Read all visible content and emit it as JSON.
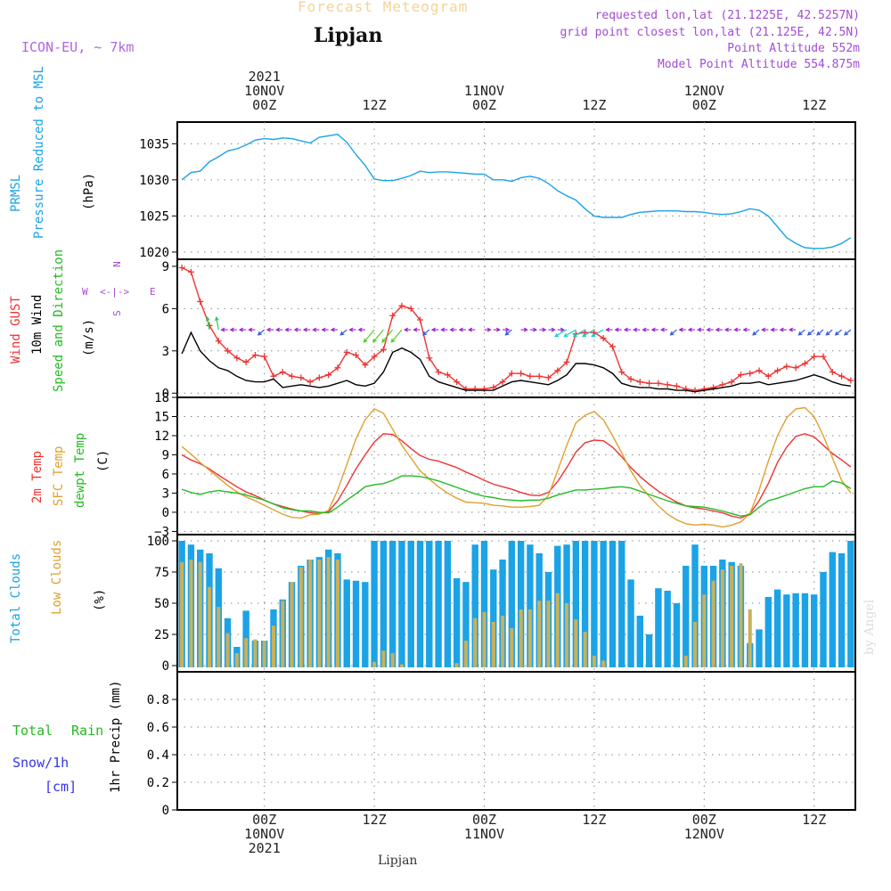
{
  "header": {
    "title": "Forecast Meteogram",
    "location": "Lipjan",
    "model": "ICON-EU, ~ 7km",
    "info": [
      "requested lon,lat (21.1225E, 42.5257N)",
      "grid point closest lon,lat (21.125E, 42.5N)",
      "Point Altitude 552m",
      "Model Point Altitude 554.875m"
    ],
    "footer_location": "Lipjan",
    "watermark": "by Angel"
  },
  "time_axis": {
    "top_labels": [
      {
        "h": 0,
        "lines": [
          "2021",
          "10NOV",
          "00Z"
        ]
      },
      {
        "h": 12,
        "lines": [
          "12Z"
        ]
      },
      {
        "h": 24,
        "lines": [
          "11NOV",
          "00Z"
        ]
      },
      {
        "h": 36,
        "lines": [
          "12Z"
        ]
      },
      {
        "h": 48,
        "lines": [
          "12NOV",
          "00Z"
        ]
      },
      {
        "h": 60,
        "lines": [
          "12Z"
        ]
      }
    ],
    "bottom_labels": [
      {
        "h": 0,
        "lines": [
          "00Z",
          "10NOV",
          "2021"
        ]
      },
      {
        "h": 12,
        "lines": [
          "12Z"
        ]
      },
      {
        "h": 24,
        "lines": [
          "00Z",
          "11NOV"
        ]
      },
      {
        "h": 36,
        "lines": [
          "12Z"
        ]
      },
      {
        "h": 48,
        "lines": [
          "00Z",
          "12NOV"
        ]
      },
      {
        "h": 60,
        "lines": [
          "12Z"
        ]
      }
    ]
  },
  "panel_labels": {
    "pressure": [
      {
        "text": "PRMSL",
        "color": "#1ba3e6"
      },
      {
        "text": "Pressure Reduced to MSL",
        "color": "#1ba3e6"
      },
      {
        "text": "(hPa)",
        "color": "#000000"
      }
    ],
    "wind": [
      {
        "text": "Wind GUST",
        "color": "#ee3333"
      },
      {
        "text": "10m Wind",
        "color": "#000000"
      },
      {
        "text": "Speed and Direction",
        "color": "#22bb22"
      },
      {
        "text": "(m/s)",
        "color": "#000000"
      }
    ],
    "wind_compass": {
      "n": "N",
      "s": "S",
      "w": "W",
      "e": "E",
      "arrows": "<-|->",
      "color": "#a44bd1"
    },
    "temp": [
      {
        "text": "2m Temp",
        "color": "#ee3333"
      },
      {
        "text": "SFC Temp",
        "color": "#e0a030"
      },
      {
        "text": "dewpt Temp",
        "color": "#22bb22"
      },
      {
        "text": "(C)",
        "color": "#000000"
      }
    ],
    "clouds": [
      {
        "text": "Total Clouds",
        "color": "#1ba3e6"
      },
      {
        "text": "Low Clouds",
        "color": "#e0a030"
      },
      {
        "text": "(%)",
        "color": "#000000"
      }
    ],
    "precip_left": [
      {
        "text": "Total",
        "color": "#22bb22"
      },
      {
        "text": "Rain",
        "color": "#22bb22"
      },
      {
        "text": "Snow/1h",
        "color": "#3333ee"
      },
      {
        "text": "[cm]",
        "color": "#3333ee"
      }
    ],
    "precip_axis": {
      "text": "1hr Precip (mm)",
      "color": "#000000"
    }
  },
  "chart_data": [
    {
      "type": "line",
      "name": "pressure",
      "ylim": [
        1019,
        1038
      ],
      "yticks": [
        1020,
        1025,
        1030,
        1035
      ],
      "x_hours": [
        -9,
        -8,
        -7,
        -6,
        -5,
        -4,
        -3,
        -2,
        -1,
        0,
        1,
        2,
        3,
        4,
        5,
        6,
        7,
        8,
        9,
        10,
        11,
        12,
        13,
        14,
        15,
        16,
        17,
        18,
        19,
        20,
        21,
        22,
        23,
        24,
        25,
        26,
        27,
        28,
        29,
        30,
        31,
        32,
        33,
        34,
        35,
        36,
        37,
        38,
        39,
        40,
        41,
        42,
        43,
        44,
        45,
        46,
        47,
        48,
        49,
        50,
        51,
        52,
        53,
        54,
        55,
        56,
        57,
        58,
        59,
        60,
        61,
        62,
        63,
        64
      ],
      "series": [
        {
          "values": [
            1030,
            1031,
            1031.2,
            1032.5,
            1033.2,
            1034,
            1034.3,
            1034.8,
            1035.5,
            1035.7,
            1035.6,
            1035.8,
            1035.7,
            1035.4,
            1035.1,
            1035.9,
            1036.1,
            1036.3,
            1035.2,
            1033.5,
            1032,
            1030.1,
            1029.9,
            1029.9,
            1030.2,
            1030.6,
            1031.2,
            1031,
            1031.1,
            1031.1,
            1031,
            1030.9,
            1030.8,
            1030.8,
            1030,
            1030,
            1029.8,
            1030.3,
            1030.5,
            1030.2,
            1029.5,
            1028.5,
            1027.8,
            1027.2,
            1026,
            1025,
            1024.8,
            1024.8,
            1024.8,
            1025.2,
            1025.5,
            1025.6,
            1025.7,
            1025.7,
            1025.7,
            1025.6,
            1025.6,
            1025.5,
            1025.3,
            1025.2,
            1025.3,
            1025.6,
            1026,
            1025.8,
            1025,
            1023.5,
            1022,
            1021.2,
            1020.6,
            1020.5,
            1020.5,
            1020.7,
            1021.2,
            1022
          ]
        }
      ],
      "color": "#1ba3e6"
    },
    {
      "type": "line",
      "name": "wind",
      "ylim": [
        -0.3,
        9.5
      ],
      "yticks": [
        0,
        3,
        6,
        9
      ],
      "x_hours": [
        -9,
        -8,
        -7,
        -6,
        -5,
        -4,
        -3,
        -2,
        -1,
        0,
        1,
        2,
        3,
        4,
        5,
        6,
        7,
        8,
        9,
        10,
        11,
        12,
        13,
        14,
        15,
        16,
        17,
        18,
        19,
        20,
        21,
        22,
        23,
        24,
        25,
        26,
        27,
        28,
        29,
        30,
        31,
        32,
        33,
        34,
        35,
        36,
        37,
        38,
        39,
        40,
        41,
        42,
        43,
        44,
        45,
        46,
        47,
        48,
        49,
        50,
        51,
        52,
        53,
        54,
        55,
        56,
        57,
        58,
        59,
        60,
        61,
        62,
        63,
        64
      ],
      "series": [
        {
          "values": [
            8.9,
            8.6,
            6.5,
            4.8,
            3.7,
            3.0,
            2.5,
            2.2,
            2.7,
            2.6,
            1.2,
            1.5,
            1.2,
            1.1,
            0.8,
            1.1,
            1.3,
            1.8,
            2.9,
            2.7,
            2.0,
            2.6,
            3.1,
            5.5,
            6.2,
            6.0,
            5.2,
            2.5,
            1.5,
            1.3,
            0.8,
            0.3,
            0.3,
            0.3,
            0.4,
            0.8,
            1.4,
            1.4,
            1.2,
            1.2,
            1.1,
            1.6,
            2.2,
            4.2,
            4.3,
            4.3,
            3.9,
            3.3,
            1.5,
            1.0,
            0.8,
            0.7,
            0.7,
            0.6,
            0.5,
            0.3,
            0.2,
            0.3,
            0.4,
            0.6,
            0.8,
            1.3,
            1.4,
            1.6,
            1.2,
            1.6,
            1.9,
            1.8,
            2.1,
            2.6,
            2.6,
            1.5,
            1.2,
            0.9
          ]
        },
        {
          "values": [
            2.8,
            4.3,
            3.0,
            2.3,
            1.8,
            1.6,
            1.2,
            0.9,
            0.8,
            0.8,
            1.0,
            0.4,
            0.5,
            0.6,
            0.5,
            0.4,
            0.5,
            0.7,
            0.9,
            0.6,
            0.5,
            0.7,
            1.5,
            2.9,
            3.2,
            2.9,
            2.4,
            1.2,
            0.8,
            0.6,
            0.4,
            0.2,
            0.2,
            0.2,
            0.2,
            0.5,
            0.8,
            0.9,
            0.8,
            0.7,
            0.6,
            0.9,
            1.3,
            2.1,
            2.1,
            2.0,
            1.8,
            1.4,
            0.7,
            0.5,
            0.4,
            0.4,
            0.3,
            0.3,
            0.2,
            0.2,
            0.1,
            0.2,
            0.3,
            0.4,
            0.5,
            0.7,
            0.7,
            0.8,
            0.6,
            0.7,
            0.8,
            0.9,
            1.1,
            1.3,
            1.1,
            0.8,
            0.6,
            0.5
          ]
        }
      ],
      "colors": [
        "#ee3333",
        "#000000"
      ]
    },
    {
      "type": "line",
      "name": "temperature",
      "ylim": [
        -3.5,
        18
      ],
      "yticks": [
        -3,
        0,
        3,
        6,
        9,
        12,
        15,
        18
      ],
      "x_hours": [
        -9,
        -8,
        -7,
        -6,
        -5,
        -4,
        -3,
        -2,
        -1,
        0,
        1,
        2,
        3,
        4,
        5,
        6,
        7,
        8,
        9,
        10,
        11,
        12,
        13,
        14,
        15,
        16,
        17,
        18,
        19,
        20,
        21,
        22,
        23,
        24,
        25,
        26,
        27,
        28,
        29,
        30,
        31,
        32,
        33,
        34,
        35,
        36,
        37,
        38,
        39,
        40,
        41,
        42,
        43,
        44,
        45,
        46,
        47,
        48,
        49,
        50,
        51,
        52,
        53,
        54,
        55,
        56,
        57,
        58,
        59,
        60,
        61,
        62,
        63,
        64
      ],
      "series": [
        {
          "values": [
            9,
            8.2,
            7.6,
            6.8,
            5.8,
            4.9,
            4.0,
            3.2,
            2.6,
            1.9,
            1.3,
            0.9,
            0.5,
            0.2,
            -0.1,
            -0.2,
            0.1,
            1.8,
            4.2,
            6.8,
            9.0,
            11.0,
            12.3,
            12.2,
            11.2,
            10.0,
            8.9,
            8.3,
            8.0,
            7.5,
            7.0,
            6.3,
            5.7,
            5.0,
            4.4,
            4.0,
            3.6,
            3.1,
            2.7,
            2.6,
            3.1,
            4.8,
            7.0,
            9.4,
            10.9,
            11.3,
            11.2,
            10.2,
            8.7,
            7.0,
            5.6,
            4.4,
            3.3,
            2.4,
            1.6,
            1.0,
            0.7,
            0.5,
            0.2,
            -0.1,
            -0.6,
            -0.9,
            -0.2,
            1.8,
            4.5,
            7.8,
            10.2,
            11.9,
            12.3,
            11.8,
            10.5,
            9.2,
            8.2,
            7.1
          ]
        },
        {
          "values": [
            10.3,
            9.1,
            7.8,
            6.6,
            5.4,
            4.2,
            3.2,
            2.4,
            1.8,
            1.1,
            0.4,
            -0.3,
            -0.8,
            -0.9,
            -0.4,
            -0.3,
            0.3,
            3.5,
            7.5,
            11.5,
            14.5,
            16.2,
            15.5,
            13.0,
            10.5,
            8.5,
            6.5,
            5.2,
            4.0,
            3.0,
            2.2,
            1.6,
            1.5,
            1.4,
            1.1,
            1.0,
            0.8,
            0.8,
            0.9,
            1.1,
            2.6,
            6.5,
            10.5,
            14.0,
            15.2,
            15.8,
            14.5,
            12.0,
            9.3,
            6.5,
            4.2,
            2.5,
            1.0,
            -0.3,
            -1.2,
            -1.8,
            -2.0,
            -1.9,
            -2.0,
            -2.3,
            -2.0,
            -1.5,
            -0.2,
            3.5,
            8.0,
            12.0,
            14.8,
            16.2,
            16.4,
            15.0,
            12.0,
            8.5,
            5.0,
            3.0
          ]
        },
        {
          "values": [
            3.6,
            3.1,
            2.8,
            3.2,
            3.4,
            3.2,
            3.0,
            2.7,
            2.3,
            1.9,
            1.3,
            0.7,
            0.4,
            0.2,
            0.2,
            0.0,
            -0.1,
            0.8,
            1.9,
            2.9,
            4.0,
            4.3,
            4.5,
            5.0,
            5.7,
            5.7,
            5.6,
            5.3,
            4.9,
            4.4,
            3.9,
            3.4,
            2.9,
            2.5,
            2.3,
            2.0,
            1.9,
            1.8,
            1.9,
            1.9,
            2.2,
            2.7,
            3.1,
            3.5,
            3.5,
            3.6,
            3.7,
            3.9,
            4.0,
            3.8,
            3.3,
            2.8,
            2.3,
            1.8,
            1.4,
            1.0,
            0.9,
            0.8,
            0.5,
            0.2,
            -0.2,
            -0.6,
            -0.4,
            0.8,
            1.8,
            2.2,
            2.7,
            3.2,
            3.7,
            4.0,
            4.0,
            4.9,
            4.6,
            3.7
          ]
        }
      ],
      "colors": [
        "#ee3333",
        "#e0a030",
        "#22bb22"
      ]
    },
    {
      "type": "bar",
      "name": "clouds",
      "ylim": [
        -5,
        105
      ],
      "yticks": [
        0,
        25,
        50,
        75,
        100
      ],
      "x_hours": [
        -9,
        -8,
        -7,
        -6,
        -5,
        -4,
        -3,
        -2,
        -1,
        0,
        1,
        2,
        3,
        4,
        5,
        6,
        7,
        8,
        9,
        10,
        11,
        12,
        13,
        14,
        15,
        16,
        17,
        18,
        19,
        20,
        21,
        22,
        23,
        24,
        25,
        26,
        27,
        28,
        29,
        30,
        31,
        32,
        33,
        34,
        35,
        36,
        37,
        38,
        39,
        40,
        41,
        42,
        43,
        44,
        45,
        46,
        47,
        48,
        49,
        50,
        51,
        52,
        53,
        54,
        55,
        56,
        57,
        58,
        59,
        60,
        61,
        62,
        63,
        64
      ],
      "series": [
        {
          "values": [
            100,
            97,
            93,
            90,
            78,
            38,
            15,
            44,
            20,
            20,
            45,
            53,
            67,
            80,
            85,
            87,
            93,
            90,
            69,
            68,
            67,
            100,
            100,
            100,
            100,
            100,
            100,
            100,
            100,
            100,
            70,
            67,
            97,
            100,
            77,
            85,
            100,
            100,
            97,
            90,
            75,
            96,
            97,
            100,
            100,
            100,
            100,
            100,
            100,
            69,
            40,
            25,
            62,
            60,
            50,
            80,
            97,
            80,
            80,
            85,
            83,
            80,
            18,
            29,
            55,
            61,
            57,
            58,
            58,
            57,
            75,
            91,
            90,
            100
          ]
        },
        {
          "values": [
            83,
            85,
            83,
            63,
            47,
            26,
            10,
            22,
            21,
            20,
            32,
            52,
            67,
            79,
            85,
            85,
            87,
            85,
            0,
            0,
            0,
            3,
            12,
            10,
            1,
            0,
            0,
            0,
            0,
            0,
            2,
            20,
            38,
            43,
            35,
            40,
            30,
            45,
            45,
            52,
            52,
            58,
            50,
            37,
            27,
            8,
            4,
            0,
            0,
            0,
            0,
            0,
            0,
            0,
            0,
            8,
            35,
            57,
            68,
            77,
            80,
            82,
            45,
            0,
            0,
            0,
            0,
            0,
            0,
            0,
            0,
            0,
            0,
            0
          ]
        }
      ],
      "colors": [
        "#1ba3e6",
        "#c9b05a"
      ]
    },
    {
      "type": "line",
      "name": "precipitation",
      "ylim": [
        0,
        1
      ],
      "yticks": [
        0,
        0.2,
        0.4,
        0.6,
        0.8
      ],
      "x_hours": [
        -9,
        64
      ],
      "series": [
        {
          "values": [
            0,
            0
          ]
        }
      ],
      "color": "#000000"
    }
  ]
}
